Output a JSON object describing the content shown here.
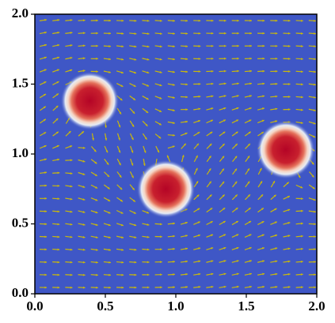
{
  "chart_data": {
    "type": "field",
    "background": "#3f57c6",
    "point_color": "#b40426",
    "arrow_color": "#c9b80c",
    "points": {
      "x": [
        0.39,
        0.93,
        1.78
      ],
      "y": [
        1.38,
        0.75,
        1.03
      ],
      "size": [
        0.13,
        0.13,
        0.13
      ]
    },
    "xlim": [
      0,
      2
    ],
    "ylim": [
      0,
      2
    ],
    "xticks": [
      {
        "value": 0,
        "label": "0.0"
      },
      0.5,
      {
        "value": 1,
        "label": "1.0"
      },
      1.5,
      {
        "value": 2,
        "label": "2.0"
      }
    ],
    "yticks": [
      {
        "value": 0,
        "label": "0.0"
      },
      0.5,
      {
        "value": 1,
        "label": "1.0"
      },
      1.5,
      {
        "value": 2,
        "label": "2.0"
      }
    ]
  }
}
